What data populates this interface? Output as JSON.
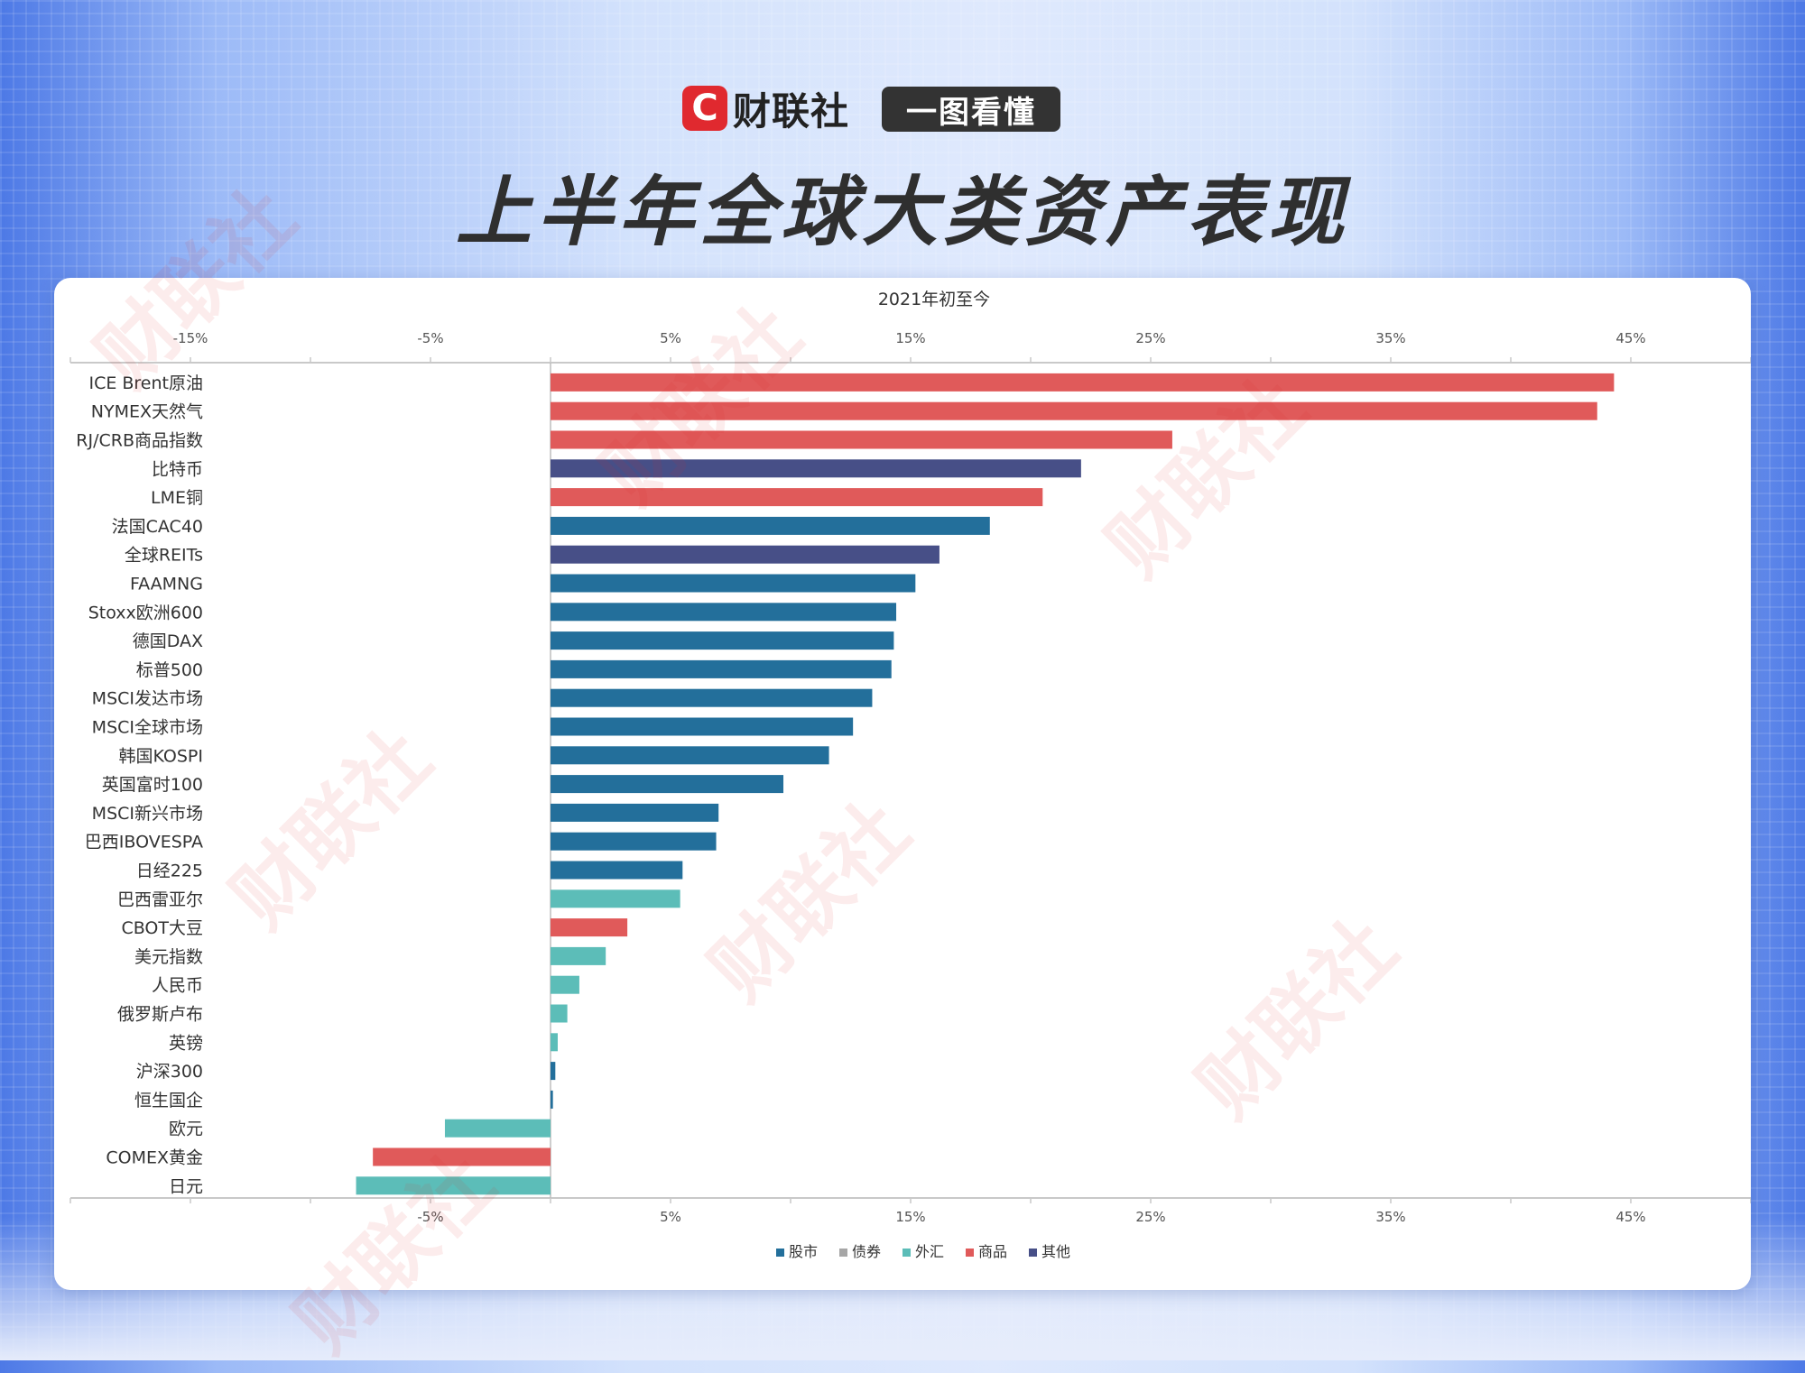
{
  "header": {
    "logo_letter": "C",
    "brand_name": "财联社",
    "tag": "一图看懂",
    "title": "上半年全球大类资产表现"
  },
  "watermark": "财联社",
  "colors": {
    "股市": "#236f9b",
    "债券": "#a6a6a6",
    "外汇": "#5cbdb8",
    "商品": "#e05a5a",
    "其他": "#474f87"
  },
  "chart_data": {
    "type": "bar",
    "orientation": "horizontal",
    "title": "2021年初至今",
    "xlim": [
      -20,
      50
    ],
    "x_ticks": [
      -15,
      -5,
      5,
      15,
      25,
      35,
      45
    ],
    "x_tick_labels": [
      "-15%",
      "-5%",
      "5%",
      "15%",
      "25%",
      "35%",
      "45%"
    ],
    "x_tick_labels_bottom": [
      "-5%",
      "5%",
      "15%",
      "25%",
      "35%",
      "45%"
    ],
    "legend": {
      "placement": "bottom-center",
      "entries": [
        "股市",
        "债券",
        "外汇",
        "商品",
        "其他"
      ]
    },
    "categories": [
      "ICE Brent原油",
      "NYMEX天然气",
      "RJ/CRB商品指数",
      "比特币",
      "LME铜",
      "法国CAC40",
      "全球REITs",
      "FAAMNG",
      "Stoxx欧洲600",
      "德国DAX",
      "标普500",
      "MSCI发达市场",
      "MSCI全球市场",
      "韩国KOSPI",
      "英国富时100",
      "MSCI新兴市场",
      "巴西IBOVESPA",
      "日经225",
      "巴西雷亚尔",
      "CBOT大豆",
      "美元指数",
      "人民币",
      "俄罗斯卢布",
      "英镑",
      "沪深300",
      "恒生国企",
      "欧元",
      "COMEX黄金",
      "日元"
    ],
    "values": [
      44.3,
      43.6,
      25.9,
      22.1,
      20.5,
      18.3,
      16.2,
      15.2,
      14.4,
      14.3,
      14.2,
      13.4,
      12.6,
      11.6,
      9.7,
      7.0,
      6.9,
      5.5,
      5.4,
      3.2,
      2.3,
      1.2,
      0.7,
      0.3,
      0.2,
      0.1,
      -4.4,
      -7.4,
      -8.1
    ],
    "groups": [
      "商品",
      "商品",
      "商品",
      "其他",
      "商品",
      "股市",
      "其他",
      "股市",
      "股市",
      "股市",
      "股市",
      "股市",
      "股市",
      "股市",
      "股市",
      "股市",
      "股市",
      "股市",
      "外汇",
      "商品",
      "外汇",
      "外汇",
      "外汇",
      "外汇",
      "股市",
      "股市",
      "外汇",
      "商品",
      "外汇"
    ]
  }
}
